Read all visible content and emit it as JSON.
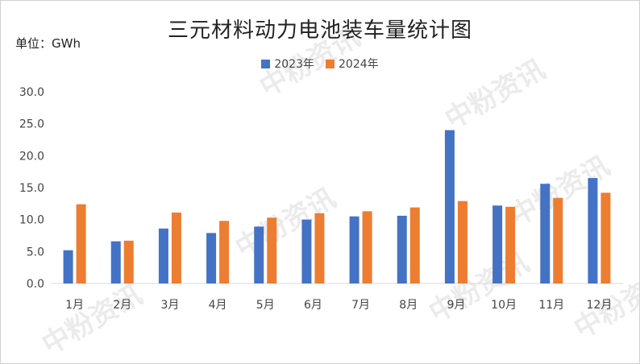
{
  "chart_data": {
    "type": "bar",
    "title": "三元材料动力电池装车量统计图",
    "unit_label": "单位：GWh",
    "categories": [
      "1月",
      "2月",
      "3月",
      "4月",
      "5月",
      "6月",
      "7月",
      "8月",
      "9月",
      "10月",
      "11月",
      "12月"
    ],
    "series": [
      {
        "name": "2023年",
        "color": "#4472C4",
        "values": [
          5.2,
          6.6,
          8.6,
          7.9,
          8.9,
          10.0,
          10.5,
          10.6,
          24.0,
          12.2,
          15.6,
          16.5
        ]
      },
      {
        "name": "2024年",
        "color": "#ED7D31",
        "values": [
          12.4,
          6.7,
          11.1,
          9.8,
          10.3,
          11.0,
          11.3,
          11.9,
          12.9,
          12.0,
          13.4,
          14.2
        ]
      }
    ],
    "ylim": [
      0,
      30
    ],
    "yticks": [
      "0.0",
      "5.0",
      "10.0",
      "15.0",
      "20.0",
      "25.0",
      "30.0"
    ],
    "grid": false,
    "legend_position": "top-center",
    "watermark": "中粉资讯"
  }
}
